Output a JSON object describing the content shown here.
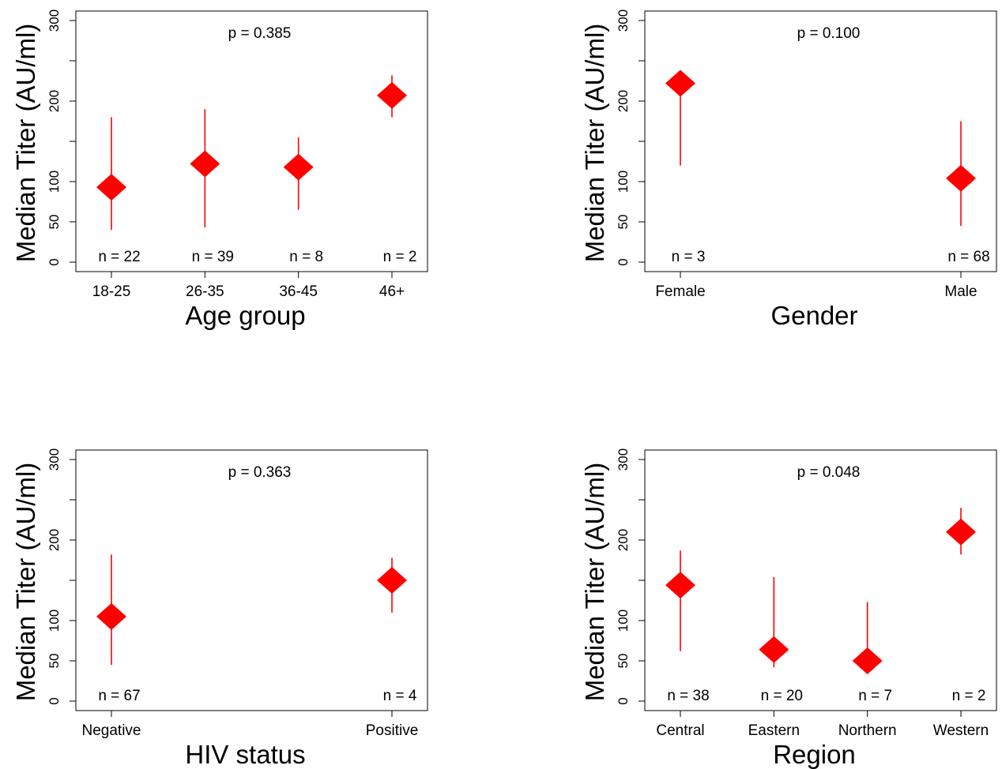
{
  "ylabel": "Median Titer (AU/ml)",
  "yticks": [
    0,
    50,
    100,
    200,
    300
  ],
  "marker_color": "#ff0000",
  "chart_data": [
    {
      "type": "scatter",
      "title": "",
      "xlabel": "Age group",
      "ylabel": "Median Titer (AU/ml)",
      "p_value": "p = 0.385",
      "ylim": [
        0,
        300
      ],
      "categories": [
        "18-25",
        "26-35",
        "36-45",
        "46+"
      ],
      "values": [
        93,
        122,
        118,
        207
      ],
      "lower": [
        40,
        43,
        65,
        180
      ],
      "upper": [
        180,
        190,
        155,
        232
      ],
      "n_labels": [
        "n = 22",
        "n = 39",
        "n = 8",
        "n = 2"
      ]
    },
    {
      "type": "scatter",
      "title": "",
      "xlabel": "Gender",
      "ylabel": "Median Titer (AU/ml)",
      "p_value": "p = 0.100",
      "ylim": [
        0,
        300
      ],
      "categories": [
        "Female",
        "Male"
      ],
      "values": [
        222,
        104
      ],
      "lower": [
        120,
        45
      ],
      "upper": [
        235,
        175
      ],
      "n_labels": [
        "n = 3",
        "n = 68"
      ]
    },
    {
      "type": "scatter",
      "title": "",
      "xlabel": "HIV status",
      "ylabel": "Median Titer (AU/ml)",
      "p_value": "p = 0.363",
      "ylim": [
        0,
        300
      ],
      "categories": [
        "Negative",
        "Positive"
      ],
      "values": [
        105,
        150
      ],
      "lower": [
        45,
        110
      ],
      "upper": [
        182,
        178
      ],
      "n_labels": [
        "n = 67",
        "n = 4"
      ]
    },
    {
      "type": "scatter",
      "title": "",
      "xlabel": "Region",
      "ylabel": "Median Titer (AU/ml)",
      "p_value": "p = 0.048",
      "ylim": [
        0,
        300
      ],
      "categories": [
        "Central",
        "Eastern",
        "Northern",
        "Western"
      ],
      "values": [
        144,
        64,
        50,
        210
      ],
      "lower": [
        62,
        42,
        40,
        182
      ],
      "upper": [
        187,
        154,
        123,
        240
      ],
      "n_labels": [
        "n = 38",
        "n = 20",
        "n = 7",
        "n = 2"
      ]
    }
  ]
}
